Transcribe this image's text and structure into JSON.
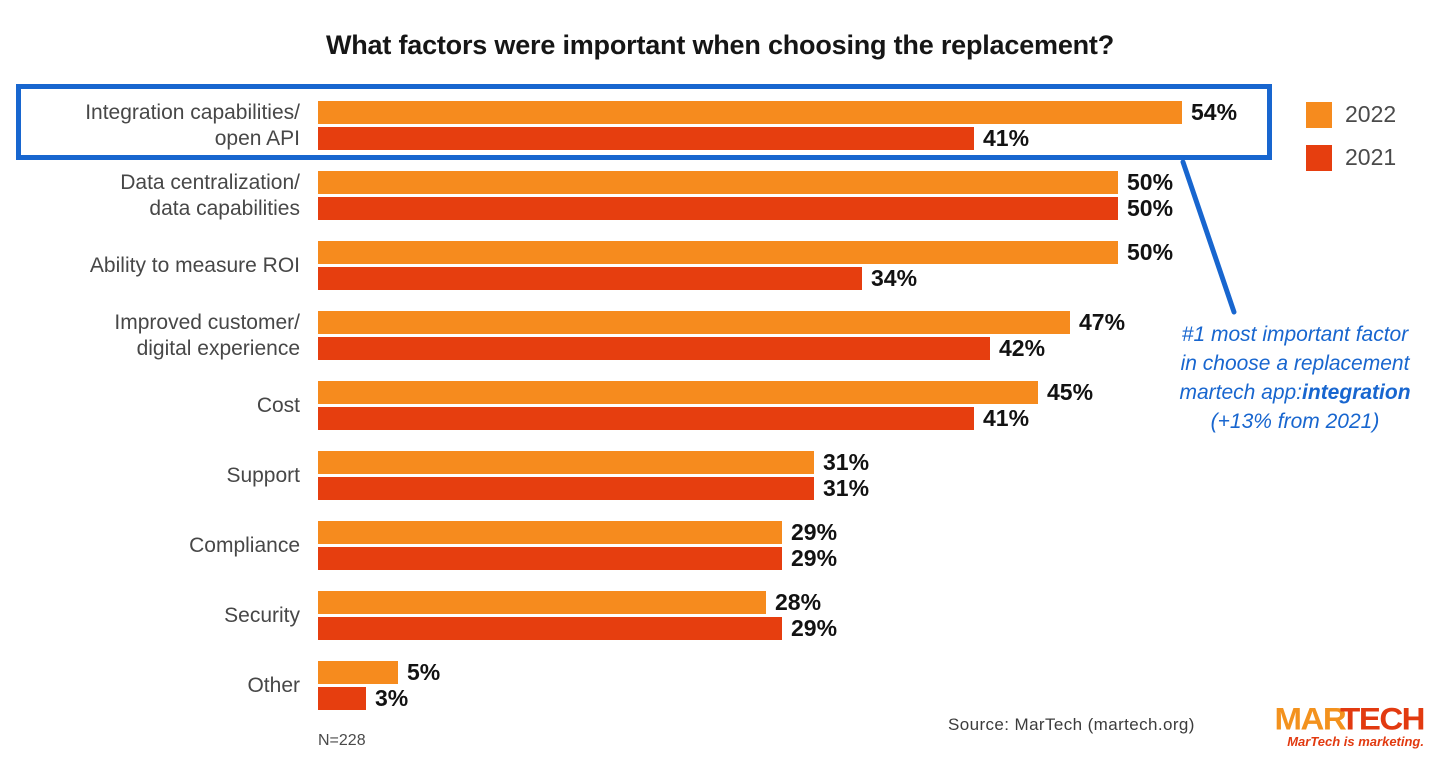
{
  "chart_data": {
    "type": "bar",
    "orientation": "horizontal",
    "title": "What factors were important when choosing the replacement?",
    "categories": [
      "Integration capabilities/ open API",
      "Data centralization/ data capabilities",
      "Ability to measure ROI",
      "Improved customer/ digital experience",
      "Cost",
      "Support",
      "Compliance",
      "Security",
      "Other"
    ],
    "category_lines": [
      [
        "Integration capabilities/",
        "open API"
      ],
      [
        "Data centralization/",
        "data capabilities"
      ],
      [
        "Ability to measure ROI"
      ],
      [
        "Improved customer/",
        "digital experience"
      ],
      [
        "Cost"
      ],
      [
        "Support"
      ],
      [
        "Compliance"
      ],
      [
        "Security"
      ],
      [
        "Other"
      ]
    ],
    "series": [
      {
        "name": "2022",
        "color": "#F68B1E",
        "values": [
          54,
          50,
          50,
          47,
          45,
          31,
          29,
          28,
          5
        ]
      },
      {
        "name": "2021",
        "color": "#E63E0F",
        "values": [
          41,
          50,
          34,
          42,
          41,
          31,
          29,
          29,
          3
        ]
      }
    ],
    "value_suffix": "%",
    "xlim": [
      0,
      60
    ],
    "axis_hidden": true,
    "grid": false,
    "legend_position": "top-right",
    "highlighted_category_index": 0
  },
  "legend": {
    "items": [
      {
        "label": "2022",
        "color": "#F68B1E"
      },
      {
        "label": "2021",
        "color": "#E63E0F"
      }
    ]
  },
  "annotation": {
    "line1": "#1 most important factor",
    "line2": "in choose a replacement",
    "line3_prefix": "martech app:",
    "line3_bold": "integration",
    "line4": "(+13% from 2021)",
    "color": "#1866CF"
  },
  "footer": {
    "sample_size": "N=228",
    "source": "Source: MarTech (martech.org)"
  },
  "logo": {
    "text_primary": "MAR",
    "text_secondary": "TECH",
    "tagline": "MarTech is marketing."
  }
}
